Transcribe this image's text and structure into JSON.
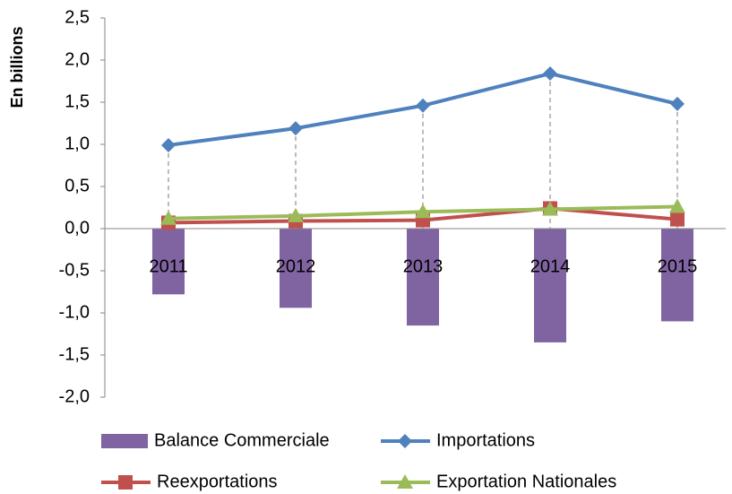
{
  "chart_data": {
    "type": "combo",
    "y_axis_label": "En billions",
    "categories": [
      "2011",
      "2012",
      "2013",
      "2014",
      "2015"
    ],
    "series": [
      {
        "name": "Balance Commerciale",
        "type": "bar",
        "color": "#8064a2",
        "values": [
          -0.78,
          -0.94,
          -1.15,
          -1.35,
          -1.1
        ]
      },
      {
        "name": "Importations",
        "type": "line",
        "marker": "diamond",
        "color": "#4f81bd",
        "values": [
          0.99,
          1.19,
          1.46,
          1.84,
          1.48
        ]
      },
      {
        "name": "Reexportations",
        "type": "line",
        "marker": "square",
        "color": "#c0504d",
        "values": [
          0.07,
          0.09,
          0.1,
          0.24,
          0.11
        ]
      },
      {
        "name": "Exportation Nationales",
        "type": "line",
        "marker": "triangle",
        "color": "#9bbb59",
        "values": [
          0.12,
          0.15,
          0.2,
          0.23,
          0.26
        ]
      }
    ],
    "ylim": [
      -2.0,
      2.5
    ],
    "yticks": [
      {
        "value": -2.0,
        "label": "-2,0"
      },
      {
        "value": -1.5,
        "label": "-1,5"
      },
      {
        "value": -1.0,
        "label": "-1,0"
      },
      {
        "value": -0.5,
        "label": "-0,5"
      },
      {
        "value": 0.0,
        "label": "0,0"
      },
      {
        "value": 0.5,
        "label": "0,5"
      },
      {
        "value": 1.0,
        "label": "1,0"
      },
      {
        "value": 1.5,
        "label": "1,5"
      },
      {
        "value": 2.0,
        "label": "2,0"
      },
      {
        "value": 2.5,
        "label": "2,5"
      }
    ],
    "drop_lines": true,
    "grid": false,
    "legend": "bottom"
  }
}
